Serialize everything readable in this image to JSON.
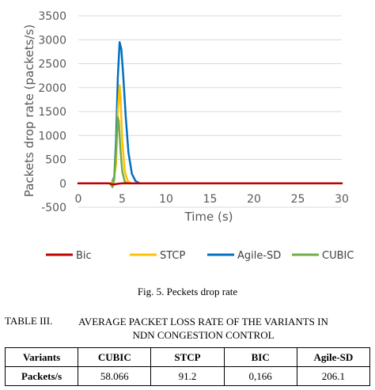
{
  "chart_data": {
    "type": "line",
    "xlabel": "Time (s)",
    "ylabel": "Packets drop rate (packets/s)",
    "xlim": [
      0,
      30
    ],
    "ylim": [
      -500,
      3500
    ],
    "xticks": [
      "0",
      "5",
      "10",
      "15",
      "20",
      "25",
      "30"
    ],
    "yticks": [
      "-500",
      "0",
      "500",
      "1000",
      "1500",
      "2000",
      "2500",
      "3000",
      "3500"
    ],
    "grid": "horizontal",
    "legend_position": "bottom",
    "series": [
      {
        "name": "Bic",
        "color": "#c00000",
        "x": [
          0,
          3.5,
          4.0,
          4.3,
          4.6,
          5.0,
          30
        ],
        "y": [
          0,
          0,
          -25,
          -15,
          -5,
          0,
          0
        ]
      },
      {
        "name": "STCP",
        "color": "#ffc000",
        "x": [
          0,
          3.6,
          4.0,
          4.3,
          4.5,
          4.7,
          4.8,
          5.0,
          5.3,
          5.6,
          6.0,
          30
        ],
        "y": [
          0,
          0,
          40,
          400,
          1500,
          2050,
          1800,
          900,
          250,
          50,
          0,
          0
        ]
      },
      {
        "name": "Agile-SD",
        "color": "#0070c0",
        "x": [
          0,
          3.8,
          4.1,
          4.3,
          4.5,
          4.7,
          4.9,
          5.1,
          5.4,
          5.7,
          6.1,
          6.5,
          7.0,
          30
        ],
        "y": [
          0,
          0,
          150,
          900,
          2200,
          2950,
          2800,
          2300,
          1400,
          650,
          200,
          50,
          0,
          0
        ]
      },
      {
        "name": "CUBIC",
        "color": "#70ad47",
        "x": [
          0,
          3.6,
          3.9,
          4.1,
          4.3,
          4.5,
          4.6,
          4.8,
          5.0,
          5.3,
          5.6,
          30
        ],
        "y": [
          0,
          0,
          -80,
          100,
          700,
          1380,
          1300,
          700,
          250,
          30,
          0,
          0
        ]
      }
    ]
  },
  "caption": "Fig. 5. Peckets drop rate",
  "table": {
    "label": "TABLE III.",
    "title_line1": "AVERAGE PACKET LOSS RATE OF THE VARIANTS IN",
    "title_line2": "NDN CONGESTION CONTROL",
    "header": [
      "Variants",
      "CUBIC",
      "STCP",
      "BIC",
      "Agile-SD"
    ],
    "row_label": "Packets/s",
    "values": [
      "58.066",
      "91.2",
      "0,166",
      "206.1"
    ]
  }
}
